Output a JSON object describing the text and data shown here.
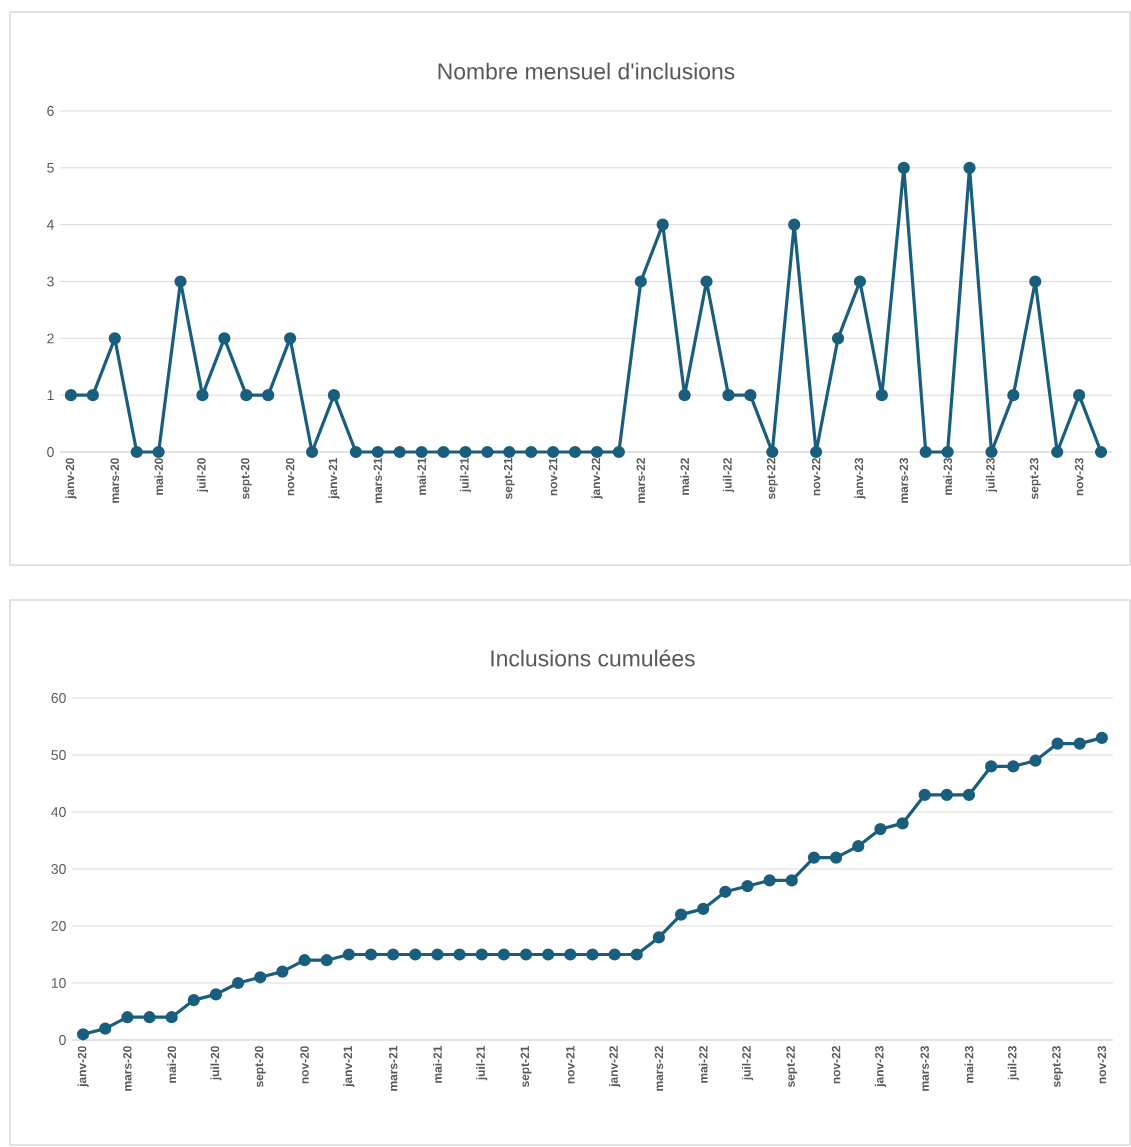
{
  "chart_data": [
    {
      "type": "line",
      "title": "Nombre mensuel d'inclusions",
      "categories": [
        "janv-20",
        null,
        "mars-20",
        null,
        "mai-20",
        null,
        "juil-20",
        null,
        "sept-20",
        null,
        "nov-20",
        null,
        "janv-21",
        null,
        "mars-21",
        null,
        "mai-21",
        null,
        "juil-21",
        null,
        "sept-21",
        null,
        "nov-21",
        null,
        "janv-22",
        null,
        "mars-22",
        null,
        "mai-22",
        null,
        "juil-22",
        null,
        "sept-22",
        null,
        "nov-22",
        null,
        "janv-23",
        null,
        "mars-23",
        null,
        "mai-23",
        null,
        "juil-23",
        null,
        "sept-23",
        null,
        "nov-23",
        null
      ],
      "values": [
        1,
        1,
        2,
        0,
        0,
        3,
        1,
        2,
        1,
        1,
        2,
        0,
        1,
        0,
        0,
        0,
        0,
        0,
        0,
        0,
        0,
        0,
        0,
        0,
        0,
        0,
        3,
        4,
        1,
        3,
        1,
        1,
        0,
        4,
        0,
        2,
        3,
        1,
        5,
        0,
        0,
        5,
        0,
        1,
        3,
        0,
        1,
        0
      ],
      "color": "#1a5e7e",
      "ylim": [
        0,
        6
      ],
      "yticks": [
        0,
        1,
        2,
        3,
        4,
        5,
        6
      ],
      "grid": "y",
      "marker": "circle"
    },
    {
      "type": "line",
      "title": "Inclusions cumulées",
      "categories": [
        "janv-20",
        null,
        "mars-20",
        null,
        "mai-20",
        null,
        "juil-20",
        null,
        "sept-20",
        null,
        "nov-20",
        null,
        "janv-21",
        null,
        "mars-21",
        null,
        "mai-21",
        null,
        "juil-21",
        null,
        "sept-21",
        null,
        "nov-21",
        null,
        "janv-22",
        null,
        "mars-22",
        null,
        "mai-22",
        null,
        "juil-22",
        null,
        "sept-22",
        null,
        "nov-22",
        null,
        "janv-23",
        null,
        "mars-23",
        null,
        "mai-23",
        null,
        "juil-23",
        null,
        "sept-23",
        null,
        "nov-23"
      ],
      "values": [
        1,
        2,
        4,
        4,
        4,
        7,
        8,
        10,
        11,
        12,
        14,
        14,
        15,
        15,
        15,
        15,
        15,
        15,
        15,
        15,
        15,
        15,
        15,
        15,
        15,
        15,
        18,
        22,
        23,
        26,
        27,
        28,
        28,
        32,
        32,
        34,
        37,
        38,
        43,
        43,
        43,
        48,
        48,
        49,
        52,
        52,
        53
      ],
      "color": "#1a5e7e",
      "ylim": [
        0,
        60
      ],
      "yticks": [
        0,
        10,
        20,
        30,
        40,
        50,
        60
      ],
      "grid": "y",
      "marker": "circle"
    }
  ]
}
